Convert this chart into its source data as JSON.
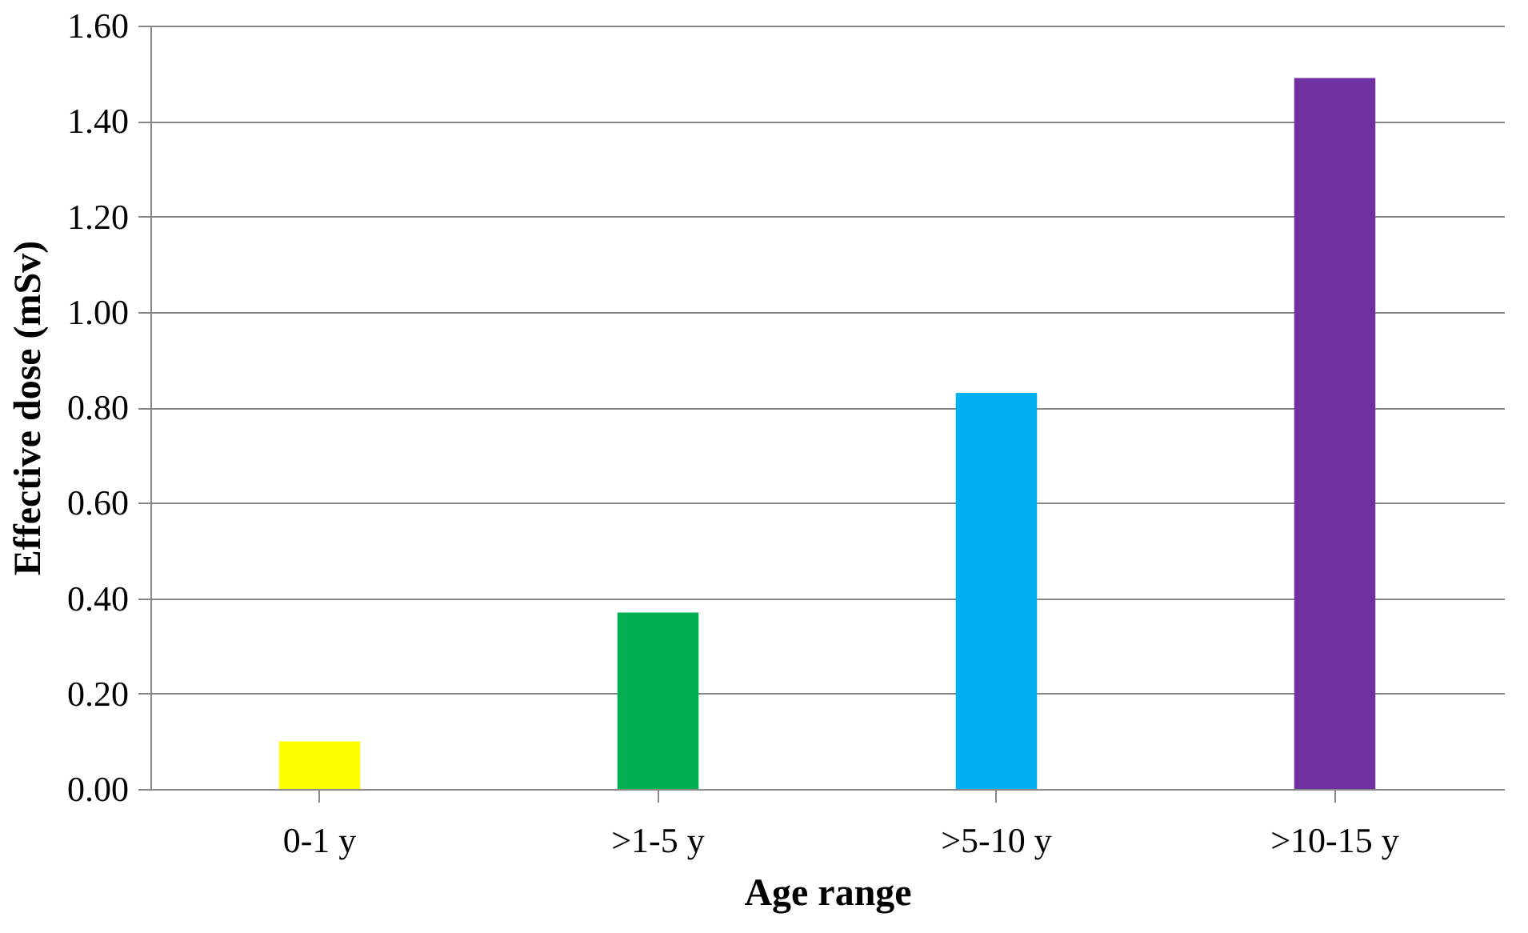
{
  "chart_data": {
    "type": "bar",
    "xlabel": "Age range",
    "ylabel": "Effective dose (mSv)",
    "categories": [
      "0-1 y",
      ">1-5 y",
      ">5-10 y",
      ">10-15 y"
    ],
    "values": [
      0.1,
      0.37,
      0.83,
      1.49
    ],
    "colors": [
      "#ffff00",
      "#00b050",
      "#00b0f0",
      "#7030a0"
    ],
    "ylim": [
      0,
      1.6
    ],
    "yticks": [
      {
        "value": 0,
        "label": "0.00"
      },
      {
        "value": 0.2,
        "label": "0.20"
      },
      {
        "value": 0.4,
        "label": "0.40"
      },
      {
        "value": 0.6,
        "label": "0.60"
      },
      {
        "value": 0.8,
        "label": "0.80"
      },
      {
        "value": 1.0,
        "label": "1.00"
      },
      {
        "value": 1.2,
        "label": "1.20"
      },
      {
        "value": 1.4,
        "label": "1.40"
      },
      {
        "value": 1.6,
        "label": "1.60"
      }
    ],
    "grid": "y"
  }
}
